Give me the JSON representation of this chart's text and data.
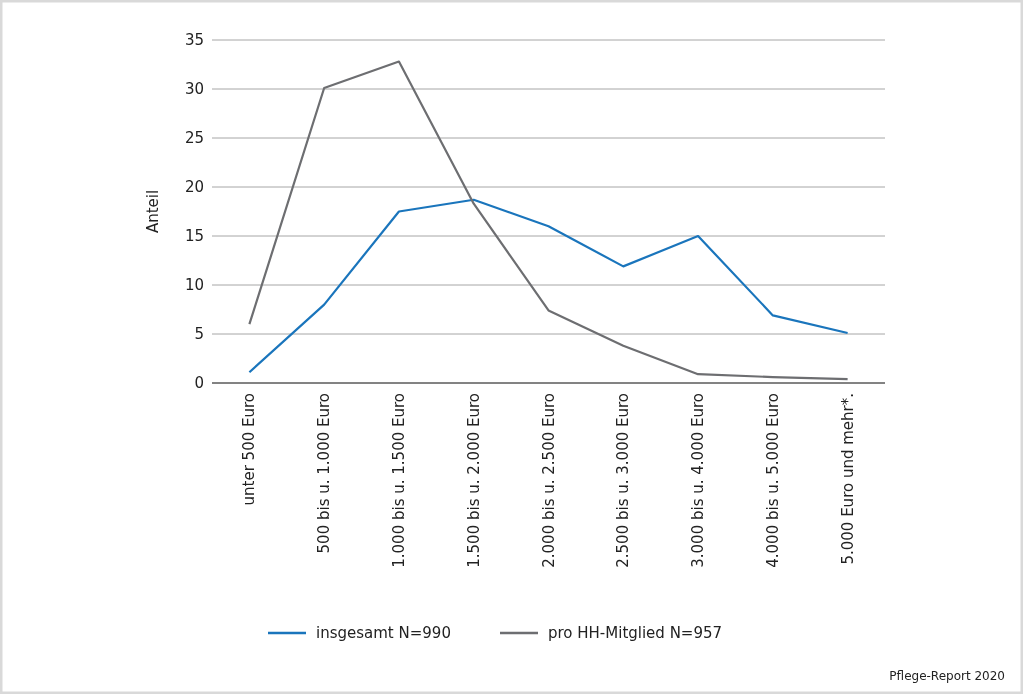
{
  "chart_data": {
    "type": "line",
    "ylabel": "Anteil",
    "categories": [
      "unter 500 Euro",
      "500 bis u. 1.000 Euro",
      "1.000 bis u. 1.500 Euro",
      "1.500 bis u. 2.000 Euro",
      "2.000 bis u. 2.500 Euro",
      "2.500 bis u. 3.000 Euro",
      "3.000 bis u. 4.000 Euro",
      "4.000 bis u. 5.000 Euro",
      "5.000 Euro und mehr*."
    ],
    "series": [
      {
        "name": "insgesamt N=990",
        "color": "#1a75bc",
        "values": [
          1.1,
          8,
          17.5,
          18.7,
          16,
          11.9,
          15,
          6.9,
          5.1
        ]
      },
      {
        "name": "pro HH-Mitglied N=957",
        "color": "#6d6e71",
        "values": [
          6,
          30.1,
          32.8,
          18.3,
          7.4,
          3.8,
          0.9,
          0.6,
          0.4
        ]
      }
    ],
    "ylim": [
      0,
      35
    ],
    "yticks": [
      0,
      5,
      10,
      15,
      20,
      25,
      30,
      35
    ],
    "grid": "y",
    "legend": "bottom",
    "marker": "none",
    "line_style": "solid",
    "annotations": [
      "Pflege-Report 2020"
    ]
  }
}
